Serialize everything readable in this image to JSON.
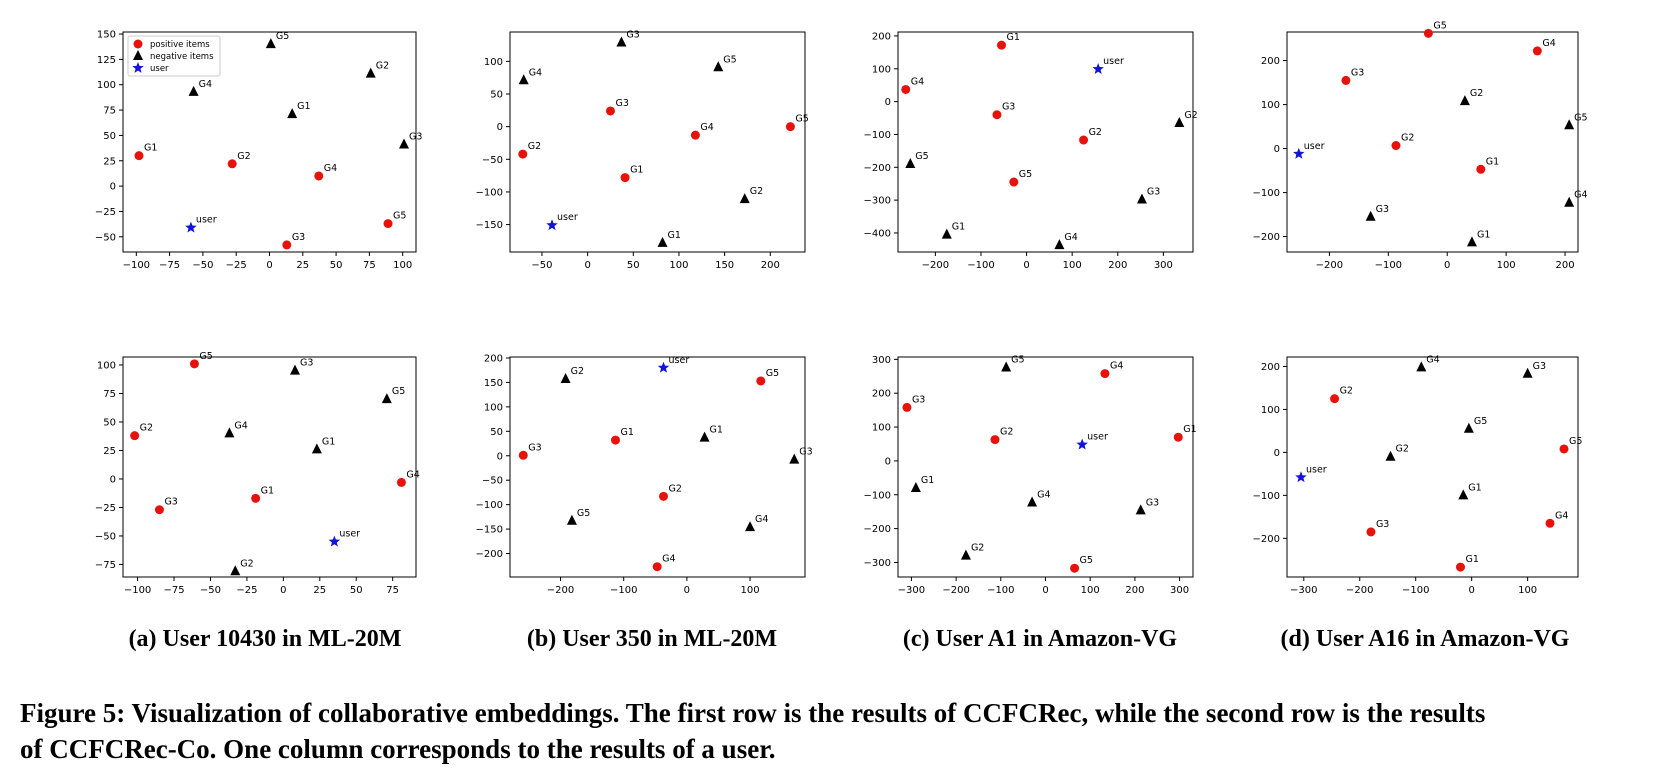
{
  "legend": {
    "positive": "positive items",
    "negative": "negative items",
    "user": "user"
  },
  "colors": {
    "positive": "#e8120c",
    "negative": "#000000",
    "user": "#1414d8"
  },
  "captions": [
    "(a) User 10430 in ML-20M",
    "(b) User 350 in ML-20M",
    "(c) User A1 in Amazon-VG",
    "(d) User A16 in Amazon-VG"
  ],
  "figure_caption": {
    "line1": "Figure 5: Visualization of collaborative embeddings. The first row is the results of CCFCRec, while the second row is the results",
    "line2": "of CCFCRec-Co. One column corresponds to the results of a user."
  },
  "chart_data": [
    {
      "type": "scatter",
      "panel": "a",
      "row": "CCFCRec",
      "xlim": [
        -110,
        110
      ],
      "ylim": [
        -65,
        152
      ],
      "xticks": [
        -100,
        -75,
        -50,
        -25,
        0,
        25,
        50,
        75,
        100
      ],
      "yticks": [
        -50,
        -25,
        0,
        25,
        50,
        75,
        100,
        125,
        150
      ],
      "show_legend": true,
      "points": [
        {
          "cls": "positive",
          "label": "G1",
          "x": -98,
          "y": 30
        },
        {
          "cls": "positive",
          "label": "G2",
          "x": -28,
          "y": 22
        },
        {
          "cls": "positive",
          "label": "G4",
          "x": 37,
          "y": 10
        },
        {
          "cls": "positive",
          "label": "G5",
          "x": 89,
          "y": -37
        },
        {
          "cls": "positive",
          "label": "G3",
          "x": 13,
          "y": -58
        },
        {
          "cls": "negative",
          "label": "G5",
          "x": 1,
          "y": 140
        },
        {
          "cls": "negative",
          "label": "G2",
          "x": 76,
          "y": 111
        },
        {
          "cls": "negative",
          "label": "G4",
          "x": -57,
          "y": 93
        },
        {
          "cls": "negative",
          "label": "G1",
          "x": 17,
          "y": 71
        },
        {
          "cls": "negative",
          "label": "G3",
          "x": 101,
          "y": 41
        },
        {
          "cls": "user",
          "label": "user",
          "x": -59,
          "y": -41
        }
      ]
    },
    {
      "type": "scatter",
      "panel": "b",
      "row": "CCFCRec",
      "xlim": [
        -85,
        238
      ],
      "ylim": [
        -192,
        145
      ],
      "xticks": [
        -50,
        0,
        50,
        100,
        150,
        200
      ],
      "yticks": [
        -150,
        -100,
        -50,
        0,
        50,
        100
      ],
      "show_legend": false,
      "points": [
        {
          "cls": "positive",
          "label": "G3",
          "x": 25,
          "y": 24
        },
        {
          "cls": "positive",
          "label": "G4",
          "x": 118,
          "y": -13
        },
        {
          "cls": "positive",
          "label": "G5",
          "x": 222,
          "y": 0
        },
        {
          "cls": "positive",
          "label": "G2",
          "x": -71,
          "y": -42
        },
        {
          "cls": "positive",
          "label": "G1",
          "x": 41,
          "y": -78
        },
        {
          "cls": "negative",
          "label": "G3",
          "x": 37,
          "y": 129
        },
        {
          "cls": "negative",
          "label": "G5",
          "x": 143,
          "y": 91
        },
        {
          "cls": "negative",
          "label": "G4",
          "x": -70,
          "y": 71
        },
        {
          "cls": "negative",
          "label": "G2",
          "x": 172,
          "y": -111
        },
        {
          "cls": "negative",
          "label": "G1",
          "x": 82,
          "y": -178
        },
        {
          "cls": "user",
          "label": "user",
          "x": -39,
          "y": -151
        }
      ]
    },
    {
      "type": "scatter",
      "panel": "c",
      "row": "CCFCRec",
      "xlim": [
        -282,
        365
      ],
      "ylim": [
        -458,
        212
      ],
      "xticks": [
        -200,
        -100,
        0,
        100,
        200,
        300
      ],
      "yticks": [
        -400,
        -300,
        -200,
        -100,
        0,
        100,
        200
      ],
      "show_legend": false,
      "points": [
        {
          "cls": "positive",
          "label": "G1",
          "x": -55,
          "y": 172
        },
        {
          "cls": "positive",
          "label": "G4",
          "x": -265,
          "y": 37
        },
        {
          "cls": "positive",
          "label": "G3",
          "x": -65,
          "y": -40
        },
        {
          "cls": "positive",
          "label": "G2",
          "x": 125,
          "y": -117
        },
        {
          "cls": "positive",
          "label": "G5",
          "x": -28,
          "y": -245
        },
        {
          "cls": "negative",
          "label": "G2",
          "x": 335,
          "y": -65
        },
        {
          "cls": "negative",
          "label": "G5",
          "x": -255,
          "y": -190
        },
        {
          "cls": "negative",
          "label": "G3",
          "x": 253,
          "y": -298
        },
        {
          "cls": "negative",
          "label": "G1",
          "x": -175,
          "y": -405
        },
        {
          "cls": "negative",
          "label": "G4",
          "x": 72,
          "y": -437
        },
        {
          "cls": "user",
          "label": "user",
          "x": 157,
          "y": 99
        }
      ]
    },
    {
      "type": "scatter",
      "panel": "d",
      "row": "CCFCRec",
      "xlim": [
        -272,
        222
      ],
      "ylim": [
        -235,
        265
      ],
      "xticks": [
        -200,
        -100,
        0,
        100,
        200
      ],
      "yticks": [
        -200,
        -100,
        0,
        100,
        200
      ],
      "show_legend": false,
      "points": [
        {
          "cls": "positive",
          "label": "G5",
          "x": -32,
          "y": 262
        },
        {
          "cls": "positive",
          "label": "G4",
          "x": 153,
          "y": 222
        },
        {
          "cls": "positive",
          "label": "G3",
          "x": -172,
          "y": 155
        },
        {
          "cls": "positive",
          "label": "G2",
          "x": -87,
          "y": 7
        },
        {
          "cls": "positive",
          "label": "G1",
          "x": 57,
          "y": -47
        },
        {
          "cls": "negative",
          "label": "G2",
          "x": 30,
          "y": 108
        },
        {
          "cls": "negative",
          "label": "G5",
          "x": 207,
          "y": 53
        },
        {
          "cls": "negative",
          "label": "G4",
          "x": 207,
          "y": -123
        },
        {
          "cls": "negative",
          "label": "G3",
          "x": -130,
          "y": -155
        },
        {
          "cls": "negative",
          "label": "G1",
          "x": 42,
          "y": -213
        },
        {
          "cls": "user",
          "label": "user",
          "x": -252,
          "y": -12
        }
      ]
    },
    {
      "type": "scatter",
      "panel": "a",
      "row": "CCFCRec-Co",
      "xlim": [
        -110,
        91
      ],
      "ylim": [
        -86,
        107
      ],
      "xticks": [
        -100,
        -75,
        -50,
        -25,
        0,
        25,
        50,
        75
      ],
      "yticks": [
        -75,
        -50,
        -25,
        0,
        25,
        50,
        75,
        100
      ],
      "show_legend": false,
      "points": [
        {
          "cls": "positive",
          "label": "G5",
          "x": -61,
          "y": 101
        },
        {
          "cls": "positive",
          "label": "G2",
          "x": -102,
          "y": 38
        },
        {
          "cls": "positive",
          "label": "G3",
          "x": -85,
          "y": -27
        },
        {
          "cls": "positive",
          "label": "G1",
          "x": -19,
          "y": -17
        },
        {
          "cls": "positive",
          "label": "G4",
          "x": 81,
          "y": -3
        },
        {
          "cls": "negative",
          "label": "G3",
          "x": 8,
          "y": 95
        },
        {
          "cls": "negative",
          "label": "G5",
          "x": 71,
          "y": 70
        },
        {
          "cls": "negative",
          "label": "G4",
          "x": -37,
          "y": 40
        },
        {
          "cls": "negative",
          "label": "G1",
          "x": 23,
          "y": 26
        },
        {
          "cls": "negative",
          "label": "G2",
          "x": -33,
          "y": -81
        },
        {
          "cls": "user",
          "label": "user",
          "x": 35,
          "y": -55
        }
      ]
    },
    {
      "type": "scatter",
      "panel": "b",
      "row": "CCFCRec-Co",
      "xlim": [
        -280,
        187
      ],
      "ylim": [
        -248,
        202
      ],
      "xticks": [
        -200,
        -100,
        0,
        100
      ],
      "yticks": [
        -200,
        -150,
        -100,
        -50,
        0,
        50,
        100,
        150,
        200
      ],
      "show_legend": false,
      "points": [
        {
          "cls": "positive",
          "label": "G5",
          "x": 117,
          "y": 153
        },
        {
          "cls": "positive",
          "label": "G1",
          "x": -113,
          "y": 32
        },
        {
          "cls": "positive",
          "label": "G3",
          "x": -259,
          "y": 1
        },
        {
          "cls": "positive",
          "label": "G2",
          "x": -37,
          "y": -83
        },
        {
          "cls": "positive",
          "label": "G4",
          "x": -47,
          "y": -227
        },
        {
          "cls": "negative",
          "label": "G2",
          "x": -192,
          "y": 157
        },
        {
          "cls": "negative",
          "label": "G1",
          "x": 28,
          "y": 37
        },
        {
          "cls": "negative",
          "label": "G3",
          "x": 170,
          "y": -8
        },
        {
          "cls": "negative",
          "label": "G5",
          "x": -182,
          "y": -133
        },
        {
          "cls": "negative",
          "label": "G4",
          "x": 100,
          "y": -146
        },
        {
          "cls": "user",
          "label": "user",
          "x": -37,
          "y": 180
        }
      ]
    },
    {
      "type": "scatter",
      "panel": "c",
      "row": "CCFCRec-Co",
      "xlim": [
        -330,
        330
      ],
      "ylim": [
        -343,
        307
      ],
      "xticks": [
        -300,
        -200,
        -100,
        0,
        100,
        200,
        300
      ],
      "yticks": [
        -300,
        -200,
        -100,
        0,
        100,
        200,
        300
      ],
      "show_legend": false,
      "points": [
        {
          "cls": "positive",
          "label": "G4",
          "x": 133,
          "y": 258
        },
        {
          "cls": "positive",
          "label": "G3",
          "x": -310,
          "y": 158
        },
        {
          "cls": "positive",
          "label": "G2",
          "x": -113,
          "y": 63
        },
        {
          "cls": "positive",
          "label": "G1",
          "x": 297,
          "y": 70
        },
        {
          "cls": "positive",
          "label": "G5",
          "x": 65,
          "y": -317
        },
        {
          "cls": "negative",
          "label": "G5",
          "x": -88,
          "y": 276
        },
        {
          "cls": "negative",
          "label": "G1",
          "x": -290,
          "y": -80
        },
        {
          "cls": "negative",
          "label": "G4",
          "x": -30,
          "y": -123
        },
        {
          "cls": "negative",
          "label": "G3",
          "x": 213,
          "y": -146
        },
        {
          "cls": "negative",
          "label": "G2",
          "x": -178,
          "y": -280
        },
        {
          "cls": "user",
          "label": "user",
          "x": 82,
          "y": 48
        }
      ]
    },
    {
      "type": "scatter",
      "panel": "d",
      "row": "CCFCRec-Co",
      "xlim": [
        -330,
        190
      ],
      "ylim": [
        -290,
        222
      ],
      "xticks": [
        -300,
        -200,
        -100,
        0,
        100
      ],
      "yticks": [
        -200,
        -100,
        0,
        100,
        200
      ],
      "show_legend": false,
      "points": [
        {
          "cls": "positive",
          "label": "G2",
          "x": -245,
          "y": 125
        },
        {
          "cls": "positive",
          "label": "G5",
          "x": 165,
          "y": 8
        },
        {
          "cls": "positive",
          "label": "G3",
          "x": -180,
          "y": -185
        },
        {
          "cls": "positive",
          "label": "G4",
          "x": 140,
          "y": -165
        },
        {
          "cls": "positive",
          "label": "G1",
          "x": -20,
          "y": -267
        },
        {
          "cls": "negative",
          "label": "G4",
          "x": -90,
          "y": 198
        },
        {
          "cls": "negative",
          "label": "G3",
          "x": 100,
          "y": 183
        },
        {
          "cls": "negative",
          "label": "G5",
          "x": -5,
          "y": 55
        },
        {
          "cls": "negative",
          "label": "G2",
          "x": -145,
          "y": -10
        },
        {
          "cls": "negative",
          "label": "G1",
          "x": -15,
          "y": -100
        },
        {
          "cls": "user",
          "label": "user",
          "x": -305,
          "y": -58
        }
      ]
    }
  ]
}
